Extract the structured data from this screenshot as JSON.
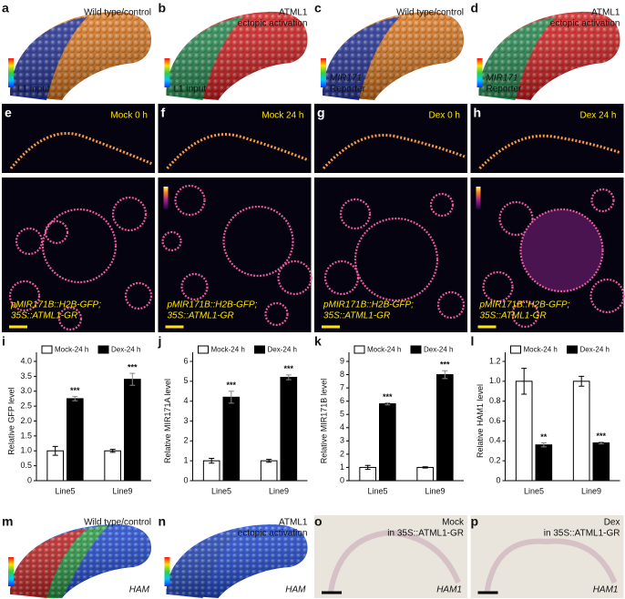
{
  "top_row": [
    {
      "label": "a",
      "title_lines": [
        "Wild type/control"
      ],
      "scale_lines": [
        "L1 input"
      ]
    },
    {
      "label": "b",
      "title_lines": [
        "ATML1",
        "ectopic activation"
      ],
      "scale_lines": [
        "L1 input"
      ]
    },
    {
      "label": "c",
      "title_lines": [
        "Wild type/control"
      ],
      "scale_lines": [
        "MIR171",
        "Reporter"
      ]
    },
    {
      "label": "d",
      "title_lines": [
        "ATML1",
        "ectopic activation"
      ],
      "scale_lines": [
        "MIR171",
        "Reporter"
      ]
    }
  ],
  "microscopy": [
    {
      "label": "e",
      "condition": "Mock 0 h",
      "genotype_lines": [
        "pMIR171B::H2B-GFP;",
        "35S::ATML1-GR"
      ]
    },
    {
      "label": "f",
      "condition": "Mock 24 h",
      "genotype_lines": [
        "pMIR171B::H2B-GFP;",
        "35S::ATML1-GR"
      ]
    },
    {
      "label": "g",
      "condition": "Dex 0 h",
      "genotype_lines": [
        "pMIR171B::H2B-GFP;",
        "35S::ATML1-GR"
      ]
    },
    {
      "label": "h",
      "condition": "Dex 24 h",
      "genotype_lines": [
        "pMIR171B::H2B-GFP;",
        "35S::ATML1-GR"
      ]
    }
  ],
  "bottom_row": [
    {
      "label": "m",
      "title_lines": [
        "Wild type/control"
      ],
      "gene": "HAM"
    },
    {
      "label": "n",
      "title_lines": [
        "ATML1",
        "ectopic activation"
      ],
      "gene": "HAM"
    },
    {
      "label": "o",
      "title_lines": [
        "Mock",
        "in 35S::ATML1-GR"
      ],
      "gene": "HAM1"
    },
    {
      "label": "p",
      "title_lines": [
        "Dex",
        "in 35S::ATML1-GR"
      ],
      "gene": "HAM1"
    }
  ],
  "chart_data": [
    {
      "type": "bar",
      "label": "i",
      "ylabel": "Relative GFP level",
      "categories": [
        "Line5",
        "Line9"
      ],
      "ylim": [
        0,
        4
      ],
      "yticks": [
        0,
        0.5,
        {
          "value": 1,
          "label": "1.0"
        },
        1.5,
        {
          "value": 2,
          "label": "2.0"
        },
        2.5,
        {
          "value": 3,
          "label": "3.0"
        },
        3.5,
        {
          "value": 4,
          "label": "4.0"
        }
      ],
      "series": [
        {
          "name": "Mock-24 h",
          "color": "#ffffff",
          "values": [
            1.0,
            1.0
          ],
          "errors": [
            0.15,
            0.05
          ]
        },
        {
          "name": "Dex-24 h",
          "color": "#000000",
          "values": [
            2.75,
            3.4
          ],
          "errors": [
            0.07,
            0.2
          ],
          "significance": [
            "***",
            "***"
          ]
        }
      ]
    },
    {
      "type": "bar",
      "label": "j",
      "ylabel": "Relative MIR171A level",
      "categories": [
        "Line5",
        "Line9"
      ],
      "ylim": [
        0,
        6
      ],
      "yticks": [
        0,
        1,
        2,
        3,
        4,
        5,
        6
      ],
      "series": [
        {
          "name": "Mock-24 h",
          "color": "#ffffff",
          "values": [
            1.0,
            1.0
          ],
          "errors": [
            0.12,
            0.07
          ]
        },
        {
          "name": "Dex-24 h",
          "color": "#000000",
          "values": [
            4.2,
            5.2
          ],
          "errors": [
            0.3,
            0.12
          ],
          "significance": [
            "***",
            "***"
          ]
        }
      ]
    },
    {
      "type": "bar",
      "label": "k",
      "ylabel": "Relative MIR171B level",
      "categories": [
        "Line5",
        "Line9"
      ],
      "ylim": [
        0,
        9
      ],
      "yticks": [
        0,
        1,
        2,
        3,
        4,
        5,
        6,
        7,
        8,
        9
      ],
      "series": [
        {
          "name": "Mock-24 h",
          "color": "#ffffff",
          "values": [
            1.0,
            1.0
          ],
          "errors": [
            0.15,
            0.05
          ]
        },
        {
          "name": "Dex-24 h",
          "color": "#000000",
          "values": [
            5.8,
            8.0
          ],
          "errors": [
            0.08,
            0.3
          ],
          "significance": [
            "***",
            "***"
          ]
        }
      ]
    },
    {
      "type": "bar",
      "label": "l",
      "ylabel": "Relative HAM1 level",
      "categories": [
        "Line5",
        "Line9"
      ],
      "ylim": [
        0,
        1.2
      ],
      "yticks": [
        0,
        0.2,
        0.4,
        0.6,
        0.8,
        {
          "value": 1,
          "label": "1.0"
        },
        1.2
      ],
      "series": [
        {
          "name": "Mock-24 h",
          "color": "#ffffff",
          "values": [
            1.0,
            1.0
          ],
          "errors": [
            0.13,
            0.05
          ]
        },
        {
          "name": "Dex-24 h",
          "color": "#000000",
          "values": [
            0.36,
            0.38
          ],
          "errors": [
            0.02,
            0.01
          ],
          "significance": [
            "**",
            "***"
          ]
        }
      ]
    }
  ]
}
